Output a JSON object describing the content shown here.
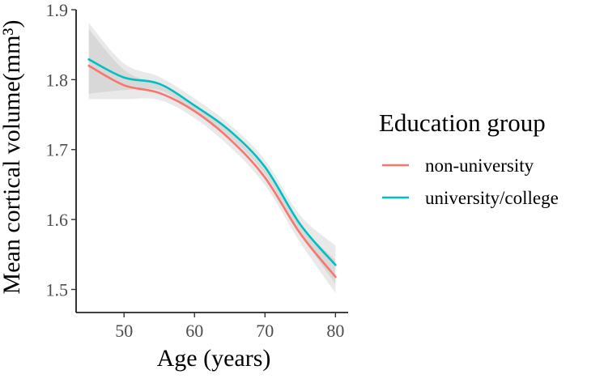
{
  "chart_data": {
    "type": "line",
    "xlabel": "Age (years)",
    "ylabel": "Mean cortical volume(mm³)",
    "xlim": [
      43.2,
      81.8
    ],
    "ylim": [
      1.467,
      1.9
    ],
    "x_ticks": [
      50,
      60,
      70,
      80
    ],
    "y_ticks": [
      1.5,
      1.6,
      1.7,
      1.8,
      1.9
    ],
    "x_tick_labels": [
      "50",
      "60",
      "70",
      "80"
    ],
    "y_tick_labels": [
      "1.5",
      "1.6",
      "1.7",
      "1.8",
      "1.9"
    ],
    "grid": false,
    "legend": {
      "title": "Education group",
      "position": "right",
      "entries": [
        "non-university",
        "university/college"
      ]
    },
    "x": [
      45,
      50,
      55,
      60,
      65,
      70,
      75,
      80
    ],
    "series": [
      {
        "name": "non-university",
        "color": "#F8766D",
        "values": [
          1.82,
          1.792,
          1.781,
          1.755,
          1.715,
          1.66,
          1.58,
          1.518
        ],
        "ci_lower": [
          1.772,
          1.772,
          1.771,
          1.745,
          1.704,
          1.649,
          1.567,
          1.495
        ],
        "ci_upper": [
          1.872,
          1.814,
          1.792,
          1.764,
          1.725,
          1.671,
          1.593,
          1.542
        ]
      },
      {
        "name": "university/college",
        "color": "#00BFC4",
        "values": [
          1.829,
          1.803,
          1.794,
          1.763,
          1.727,
          1.675,
          1.593,
          1.535
        ],
        "ci_lower": [
          1.78,
          1.785,
          1.785,
          1.755,
          1.718,
          1.665,
          1.58,
          1.508
        ],
        "ci_upper": [
          1.881,
          1.823,
          1.804,
          1.773,
          1.736,
          1.685,
          1.606,
          1.563
        ]
      }
    ]
  }
}
